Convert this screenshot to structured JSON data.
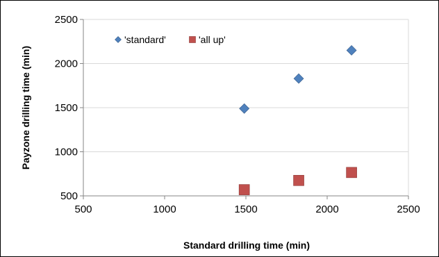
{
  "chart_data": {
    "type": "scatter",
    "title": "",
    "xlabel": "Standard drilling time (min)",
    "ylabel": "Payzone drilling time (min)",
    "xlim": [
      500,
      2500
    ],
    "ylim": [
      500,
      2500
    ],
    "x_ticks": [
      500,
      1000,
      1500,
      2000,
      2500
    ],
    "y_ticks": [
      500,
      1000,
      1500,
      2000,
      2500
    ],
    "grid": "horizontal",
    "legend_position": "top-left",
    "series": [
      {
        "name": "'standard'",
        "marker": "diamond",
        "color": "#4f81bd",
        "x": [
          1490,
          1825,
          2150
        ],
        "y": [
          1490,
          1830,
          2150
        ]
      },
      {
        "name": "'all up'",
        "marker": "square",
        "color": "#c0504d",
        "x": [
          1490,
          1825,
          2150
        ],
        "y": [
          570,
          675,
          765
        ]
      }
    ]
  }
}
